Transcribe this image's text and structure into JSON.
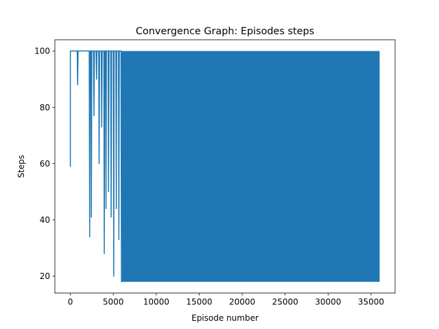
{
  "chart_data": {
    "type": "line",
    "title": "Convergence Graph: Episodes steps",
    "xlabel": "Episode number",
    "ylabel": "Steps",
    "xlim": [
      -1800,
      37800
    ],
    "ylim": [
      14,
      104
    ],
    "x_ticks": [
      0,
      5000,
      10000,
      15000,
      20000,
      25000,
      30000,
      35000
    ],
    "x_tick_labels": [
      "0",
      "5000",
      "10000",
      "15000",
      "20000",
      "25000",
      "30000",
      "35000"
    ],
    "y_ticks": [
      20,
      40,
      60,
      80,
      100
    ],
    "y_tick_labels": [
      "20",
      "40",
      "60",
      "80",
      "100"
    ],
    "grid": false,
    "legend": "none",
    "series": [
      {
        "color": "#1f77b4",
        "band": {
          "x_start": 6000,
          "x_end": 36000,
          "min": 18,
          "max": 100
        },
        "points": [
          [
            0,
            100
          ],
          [
            0,
            59
          ],
          [
            0,
            100
          ],
          [
            800,
            100
          ],
          [
            850,
            88
          ],
          [
            900,
            100
          ],
          [
            2200,
            100
          ],
          [
            2250,
            34
          ],
          [
            2300,
            100
          ],
          [
            2400,
            100
          ],
          [
            2450,
            41
          ],
          [
            2500,
            100
          ],
          [
            2700,
            100
          ],
          [
            2750,
            77
          ],
          [
            2800,
            100
          ],
          [
            3000,
            100
          ],
          [
            3050,
            90
          ],
          [
            3100,
            100
          ],
          [
            3300,
            100
          ],
          [
            3350,
            60
          ],
          [
            3400,
            100
          ],
          [
            3600,
            100
          ],
          [
            3650,
            73
          ],
          [
            3700,
            100
          ],
          [
            3900,
            100
          ],
          [
            3950,
            28
          ],
          [
            4000,
            100
          ],
          [
            4100,
            100
          ],
          [
            4150,
            44
          ],
          [
            4200,
            100
          ],
          [
            4400,
            100
          ],
          [
            4450,
            50
          ],
          [
            4500,
            100
          ],
          [
            4700,
            100
          ],
          [
            4750,
            41
          ],
          [
            4800,
            100
          ],
          [
            5000,
            100
          ],
          [
            5050,
            20
          ],
          [
            5100,
            100
          ],
          [
            5300,
            100
          ],
          [
            5350,
            44
          ],
          [
            5400,
            100
          ],
          [
            5600,
            100
          ],
          [
            5650,
            33
          ],
          [
            5700,
            100
          ],
          [
            5900,
            100
          ],
          [
            5950,
            18
          ],
          [
            6000,
            100
          ]
        ]
      }
    ]
  }
}
